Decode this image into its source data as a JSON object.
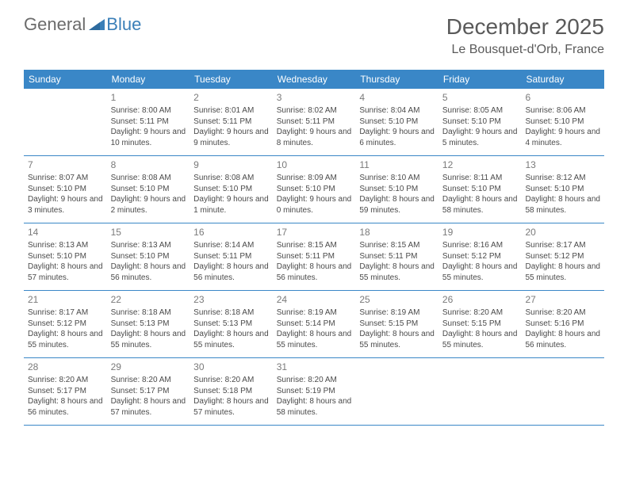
{
  "brand": {
    "part1": "General",
    "part2": "Blue"
  },
  "title": "December 2025",
  "location": "Le Bousquet-d'Orb, France",
  "colors": {
    "header_bg": "#3a87c7",
    "header_text": "#ffffff",
    "border": "#3a87c7",
    "text": "#4a4a4a",
    "daynum": "#7a7a7a",
    "title": "#5a5a5a",
    "logo_gray": "#6b6b6b",
    "logo_blue": "#3a7fb8",
    "background": "#ffffff"
  },
  "day_headers": [
    "Sunday",
    "Monday",
    "Tuesday",
    "Wednesday",
    "Thursday",
    "Friday",
    "Saturday"
  ],
  "weeks": [
    [
      {
        "n": "",
        "sr": "",
        "ss": "",
        "dl": ""
      },
      {
        "n": "1",
        "sr": "Sunrise: 8:00 AM",
        "ss": "Sunset: 5:11 PM",
        "dl": "Daylight: 9 hours and 10 minutes."
      },
      {
        "n": "2",
        "sr": "Sunrise: 8:01 AM",
        "ss": "Sunset: 5:11 PM",
        "dl": "Daylight: 9 hours and 9 minutes."
      },
      {
        "n": "3",
        "sr": "Sunrise: 8:02 AM",
        "ss": "Sunset: 5:11 PM",
        "dl": "Daylight: 9 hours and 8 minutes."
      },
      {
        "n": "4",
        "sr": "Sunrise: 8:04 AM",
        "ss": "Sunset: 5:10 PM",
        "dl": "Daylight: 9 hours and 6 minutes."
      },
      {
        "n": "5",
        "sr": "Sunrise: 8:05 AM",
        "ss": "Sunset: 5:10 PM",
        "dl": "Daylight: 9 hours and 5 minutes."
      },
      {
        "n": "6",
        "sr": "Sunrise: 8:06 AM",
        "ss": "Sunset: 5:10 PM",
        "dl": "Daylight: 9 hours and 4 minutes."
      }
    ],
    [
      {
        "n": "7",
        "sr": "Sunrise: 8:07 AM",
        "ss": "Sunset: 5:10 PM",
        "dl": "Daylight: 9 hours and 3 minutes."
      },
      {
        "n": "8",
        "sr": "Sunrise: 8:08 AM",
        "ss": "Sunset: 5:10 PM",
        "dl": "Daylight: 9 hours and 2 minutes."
      },
      {
        "n": "9",
        "sr": "Sunrise: 8:08 AM",
        "ss": "Sunset: 5:10 PM",
        "dl": "Daylight: 9 hours and 1 minute."
      },
      {
        "n": "10",
        "sr": "Sunrise: 8:09 AM",
        "ss": "Sunset: 5:10 PM",
        "dl": "Daylight: 9 hours and 0 minutes."
      },
      {
        "n": "11",
        "sr": "Sunrise: 8:10 AM",
        "ss": "Sunset: 5:10 PM",
        "dl": "Daylight: 8 hours and 59 minutes."
      },
      {
        "n": "12",
        "sr": "Sunrise: 8:11 AM",
        "ss": "Sunset: 5:10 PM",
        "dl": "Daylight: 8 hours and 58 minutes."
      },
      {
        "n": "13",
        "sr": "Sunrise: 8:12 AM",
        "ss": "Sunset: 5:10 PM",
        "dl": "Daylight: 8 hours and 58 minutes."
      }
    ],
    [
      {
        "n": "14",
        "sr": "Sunrise: 8:13 AM",
        "ss": "Sunset: 5:10 PM",
        "dl": "Daylight: 8 hours and 57 minutes."
      },
      {
        "n": "15",
        "sr": "Sunrise: 8:13 AM",
        "ss": "Sunset: 5:10 PM",
        "dl": "Daylight: 8 hours and 56 minutes."
      },
      {
        "n": "16",
        "sr": "Sunrise: 8:14 AM",
        "ss": "Sunset: 5:11 PM",
        "dl": "Daylight: 8 hours and 56 minutes."
      },
      {
        "n": "17",
        "sr": "Sunrise: 8:15 AM",
        "ss": "Sunset: 5:11 PM",
        "dl": "Daylight: 8 hours and 56 minutes."
      },
      {
        "n": "18",
        "sr": "Sunrise: 8:15 AM",
        "ss": "Sunset: 5:11 PM",
        "dl": "Daylight: 8 hours and 55 minutes."
      },
      {
        "n": "19",
        "sr": "Sunrise: 8:16 AM",
        "ss": "Sunset: 5:12 PM",
        "dl": "Daylight: 8 hours and 55 minutes."
      },
      {
        "n": "20",
        "sr": "Sunrise: 8:17 AM",
        "ss": "Sunset: 5:12 PM",
        "dl": "Daylight: 8 hours and 55 minutes."
      }
    ],
    [
      {
        "n": "21",
        "sr": "Sunrise: 8:17 AM",
        "ss": "Sunset: 5:12 PM",
        "dl": "Daylight: 8 hours and 55 minutes."
      },
      {
        "n": "22",
        "sr": "Sunrise: 8:18 AM",
        "ss": "Sunset: 5:13 PM",
        "dl": "Daylight: 8 hours and 55 minutes."
      },
      {
        "n": "23",
        "sr": "Sunrise: 8:18 AM",
        "ss": "Sunset: 5:13 PM",
        "dl": "Daylight: 8 hours and 55 minutes."
      },
      {
        "n": "24",
        "sr": "Sunrise: 8:19 AM",
        "ss": "Sunset: 5:14 PM",
        "dl": "Daylight: 8 hours and 55 minutes."
      },
      {
        "n": "25",
        "sr": "Sunrise: 8:19 AM",
        "ss": "Sunset: 5:15 PM",
        "dl": "Daylight: 8 hours and 55 minutes."
      },
      {
        "n": "26",
        "sr": "Sunrise: 8:20 AM",
        "ss": "Sunset: 5:15 PM",
        "dl": "Daylight: 8 hours and 55 minutes."
      },
      {
        "n": "27",
        "sr": "Sunrise: 8:20 AM",
        "ss": "Sunset: 5:16 PM",
        "dl": "Daylight: 8 hours and 56 minutes."
      }
    ],
    [
      {
        "n": "28",
        "sr": "Sunrise: 8:20 AM",
        "ss": "Sunset: 5:17 PM",
        "dl": "Daylight: 8 hours and 56 minutes."
      },
      {
        "n": "29",
        "sr": "Sunrise: 8:20 AM",
        "ss": "Sunset: 5:17 PM",
        "dl": "Daylight: 8 hours and 57 minutes."
      },
      {
        "n": "30",
        "sr": "Sunrise: 8:20 AM",
        "ss": "Sunset: 5:18 PM",
        "dl": "Daylight: 8 hours and 57 minutes."
      },
      {
        "n": "31",
        "sr": "Sunrise: 8:20 AM",
        "ss": "Sunset: 5:19 PM",
        "dl": "Daylight: 8 hours and 58 minutes."
      },
      {
        "n": "",
        "sr": "",
        "ss": "",
        "dl": ""
      },
      {
        "n": "",
        "sr": "",
        "ss": "",
        "dl": ""
      },
      {
        "n": "",
        "sr": "",
        "ss": "",
        "dl": ""
      }
    ]
  ]
}
